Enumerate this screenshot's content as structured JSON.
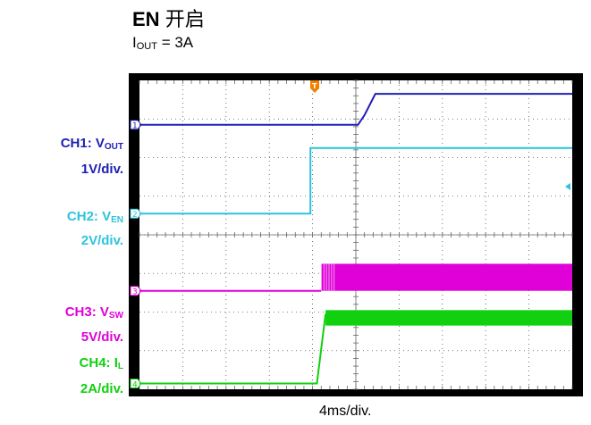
{
  "header": {
    "title_bold": "EN",
    "title_rest": "开启",
    "subtitle_main": "I",
    "subtitle_sub": "OUT",
    "subtitle_rest": " = 3A"
  },
  "channels": [
    {
      "id": "1",
      "name": "CH1: V",
      "sub": "OUT",
      "scale": "1V/div.",
      "color": "#2020b4"
    },
    {
      "id": "2",
      "name": "CH2: V",
      "sub": "EN",
      "scale": "2V/div.",
      "color": "#2cc4dc"
    },
    {
      "id": "3",
      "name": "CH3: V",
      "sub": "SW",
      "scale": "5V/div.",
      "color": "#e000d8"
    },
    {
      "id": "4",
      "name": "CH4: I",
      "sub": "L",
      "scale": "2A/div.",
      "color": "#10d010"
    }
  ],
  "trigger_marker": "T",
  "chart_data": {
    "type": "line",
    "x_unit": "div",
    "xlim": [
      0,
      10
    ],
    "ylim": [
      0,
      8
    ],
    "xlabel": "4ms/div.",
    "grid": true,
    "series": [
      {
        "name": "CH1: VOUT",
        "x": [
          0,
          5.05,
          5.2,
          5.45,
          10
        ],
        "y": [
          6.85,
          6.85,
          7.1,
          7.65,
          7.65
        ]
      },
      {
        "name": "CH2: VEN",
        "x": [
          0,
          3.95,
          3.95,
          10
        ],
        "y": [
          4.55,
          4.55,
          6.25,
          6.25
        ]
      },
      {
        "name": "CH3: VSW",
        "x": [
          0,
          4.2,
          4.2,
          10
        ],
        "y": [
          2.55,
          2.55,
          "switching 2.55-3.25",
          "switching 2.55-3.25"
        ]
      },
      {
        "name": "CH4: IL",
        "x": [
          0,
          4.1,
          4.3,
          10
        ],
        "y": [
          0.15,
          0.15,
          1.95,
          1.85
        ]
      }
    ]
  }
}
